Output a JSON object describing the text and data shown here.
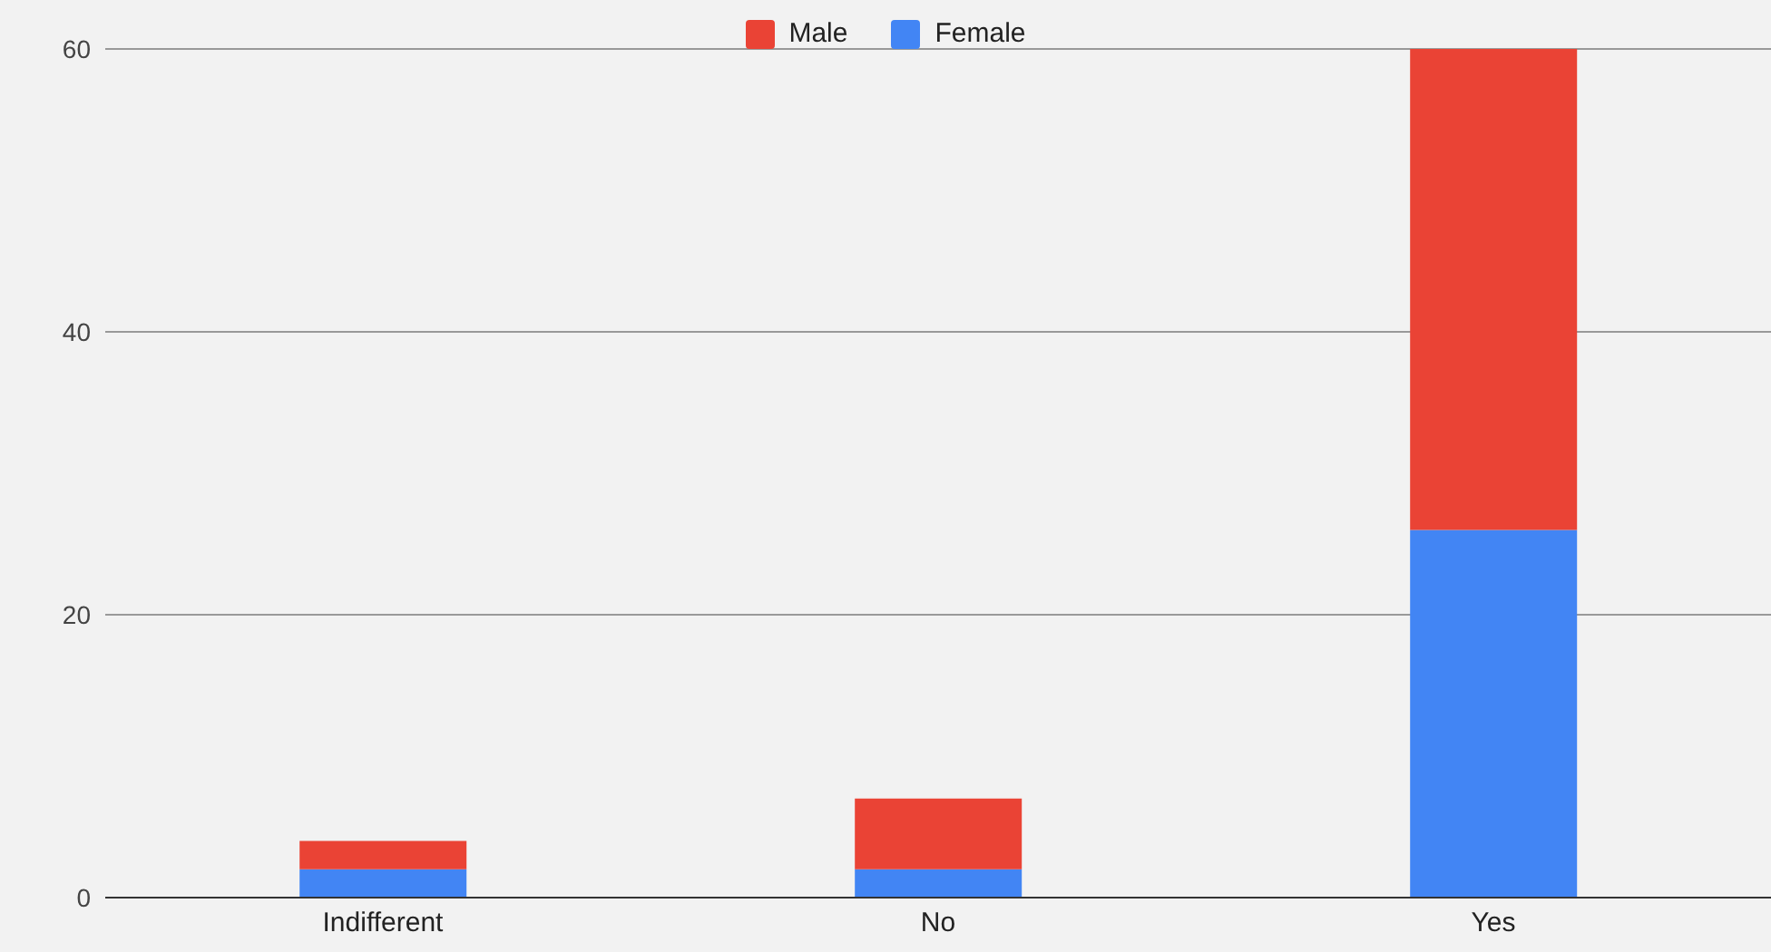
{
  "chart_data": {
    "type": "bar",
    "stacked": true,
    "categories": [
      "Indifferent",
      "No",
      "Yes"
    ],
    "series": [
      {
        "name": "Female",
        "color": "#4285f4",
        "values": [
          2,
          2,
          26
        ]
      },
      {
        "name": "Male",
        "color": "#ea4335",
        "values": [
          2,
          5,
          34
        ]
      }
    ],
    "ylim": [
      0,
      60
    ],
    "yticks": [
      0,
      20,
      40,
      60
    ],
    "grid": "y",
    "legend": "top"
  }
}
